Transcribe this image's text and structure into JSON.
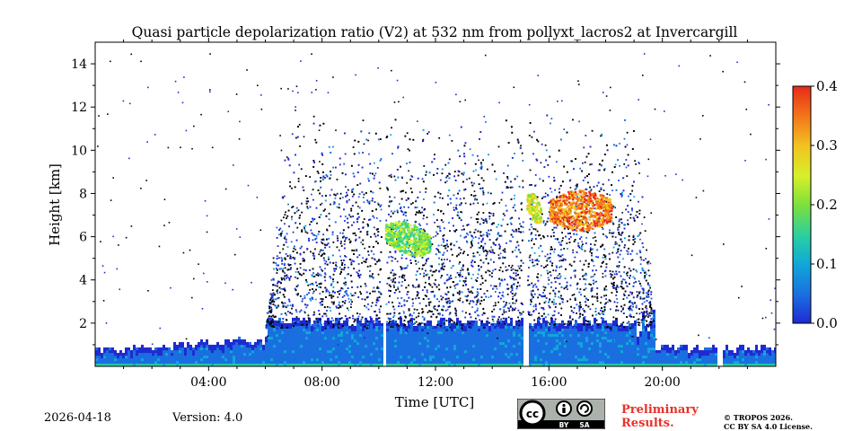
{
  "chart_data": {
    "type": "heatmap",
    "title": "Quasi particle depolarization ratio (V2) at 532 nm from pollyxt_lacros2 at Invercargill",
    "xlabel": "Time [UTC]",
    "ylabel": "Height [km]",
    "xlim_hours": [
      0,
      24
    ],
    "ylim_km": [
      0,
      15
    ],
    "x_ticks": [
      {
        "hour": 4,
        "label": "04:00"
      },
      {
        "hour": 8,
        "label": "08:00"
      },
      {
        "hour": 12,
        "label": "12:00"
      },
      {
        "hour": 16,
        "label": "16:00"
      },
      {
        "hour": 20,
        "label": "20:00"
      }
    ],
    "y_ticks": [
      {
        "km": 2,
        "label": "2"
      },
      {
        "km": 4,
        "label": "4"
      },
      {
        "km": 6,
        "label": "6"
      },
      {
        "km": 8,
        "label": "8"
      },
      {
        "km": 10,
        "label": "10"
      },
      {
        "km": 12,
        "label": "12"
      },
      {
        "km": 14,
        "label": "14"
      }
    ],
    "colorbar": {
      "min": 0.0,
      "max": 0.4,
      "ticks": [
        {
          "value": 0.0,
          "label": "0.0"
        },
        {
          "value": 0.1,
          "label": "0.1"
        },
        {
          "value": 0.2,
          "label": "0.2"
        },
        {
          "value": 0.3,
          "label": "0.3"
        },
        {
          "value": 0.4,
          "label": "0.4"
        }
      ],
      "colormap": [
        "#1f2bd1",
        "#1a6fe0",
        "#10a8d8",
        "#2ad0a0",
        "#7ee03a",
        "#d6f02a",
        "#f2c21f",
        "#f3781a",
        "#e82a1a"
      ]
    },
    "features": {
      "noise_layer": {
        "start_hour": 6.0,
        "end_hour": 19.7,
        "max_height_km": 12
      },
      "boundary_layer_height_km": 1.8,
      "data_gaps_hours": [
        10.15,
        15.15,
        22.0
      ],
      "aerosol_layers": [
        {
          "start_hour": 10.2,
          "end_hour": 11.8,
          "height_km": [
            5.5,
            7.0
          ],
          "depol_ratio": 0.2
        },
        {
          "start_hour": 15.2,
          "end_hour": 15.7,
          "height_km": [
            7.0,
            8.3
          ],
          "depol_ratio": 0.25
        },
        {
          "start_hour": 16.0,
          "end_hour": 18.2,
          "height_km": [
            6.3,
            8.2
          ],
          "depol_ratio": 0.35
        }
      ]
    }
  },
  "footer": {
    "date": "2026-04-18",
    "version": "Version: 4.0",
    "preliminary": [
      "Preliminary",
      "Results."
    ],
    "copyright": [
      "© TROPOS 2026.",
      "CC BY SA 4.0 License."
    ],
    "cc_badge": {
      "labels": [
        "BY",
        "SA"
      ]
    }
  }
}
